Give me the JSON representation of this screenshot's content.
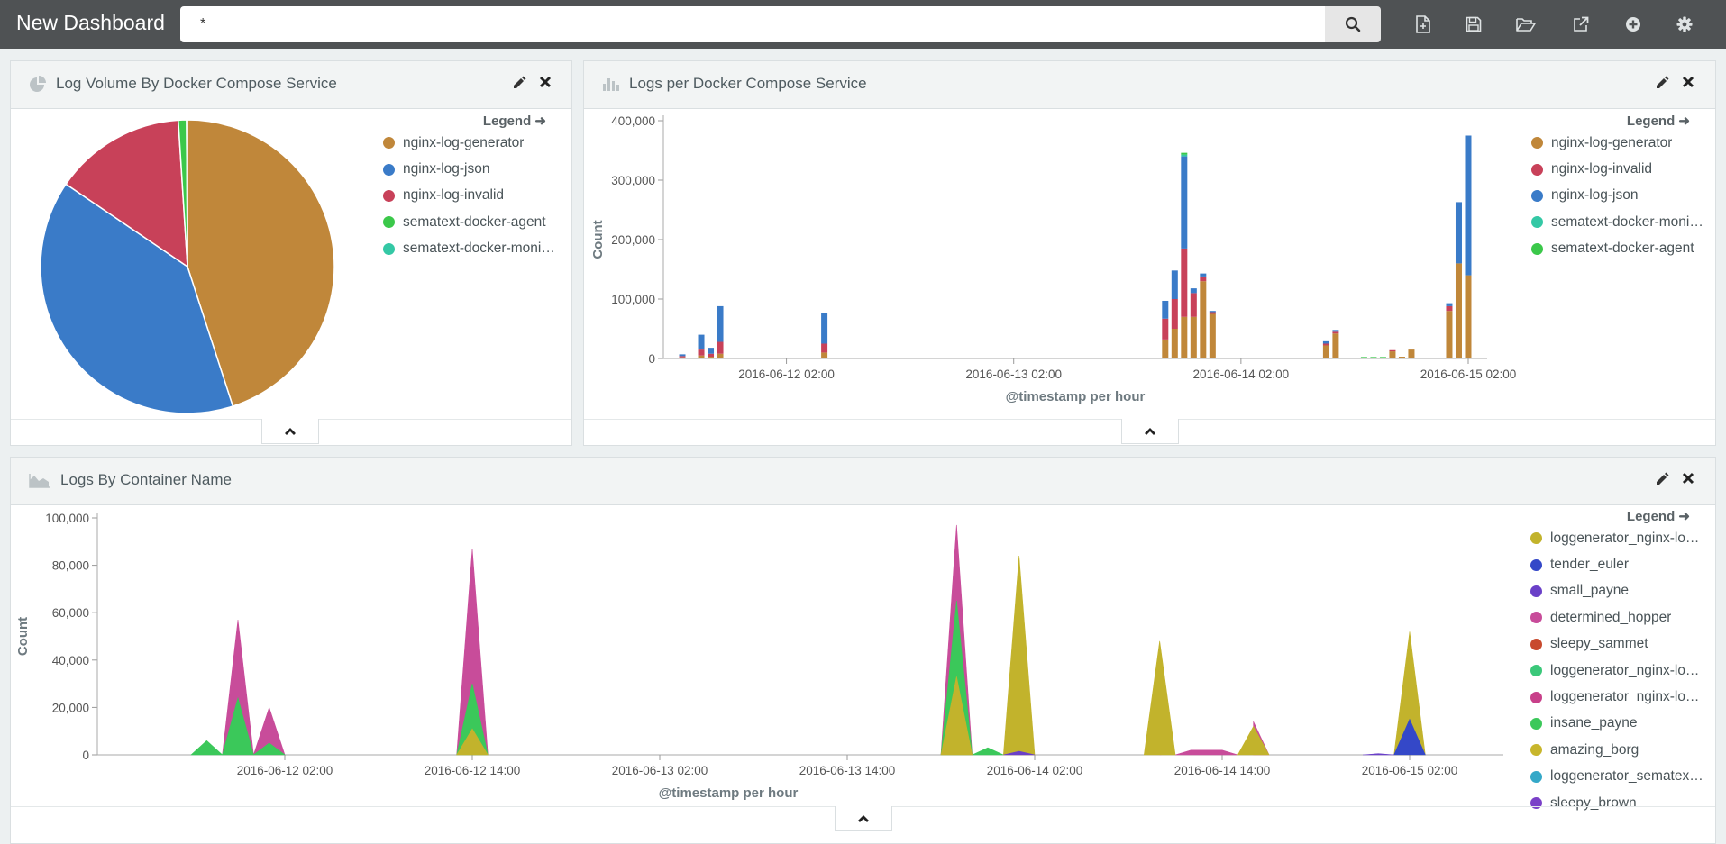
{
  "app": {
    "title": "New Dashboard"
  },
  "search": {
    "value": "*"
  },
  "toolbar": {
    "icons": [
      "new-dashboard-icon",
      "save-icon",
      "open-icon",
      "share-icon",
      "add-panel-icon",
      "settings-icon"
    ]
  },
  "colors": {
    "topbar": "#4f5254",
    "gold": "#c0873a",
    "blue": "#3a7bc8",
    "red": "#c84159",
    "green": "#3bc84a",
    "teal": "#34c8a5"
  },
  "panels": {
    "pie": {
      "title": "Log Volume By Docker Compose Service",
      "legend_title": "Legend",
      "legend": [
        {
          "label": "nginx-log-generator",
          "color": "#c0873a"
        },
        {
          "label": "nginx-log-json",
          "color": "#3a7bc8"
        },
        {
          "label": "nginx-log-invalid",
          "color": "#c84159"
        },
        {
          "label": "sematext-docker-agent",
          "color": "#3bc84a"
        },
        {
          "label": "sematext-docker-moni…",
          "color": "#34c8a5"
        }
      ]
    },
    "bar": {
      "title": "Logs per Docker Compose Service",
      "legend_title": "Legend",
      "legend": [
        {
          "label": "nginx-log-generator",
          "color": "#c0873a"
        },
        {
          "label": "nginx-log-invalid",
          "color": "#c84159"
        },
        {
          "label": "nginx-log-json",
          "color": "#3a7bc8"
        },
        {
          "label": "sematext-docker-moni…",
          "color": "#34c8a5"
        },
        {
          "label": "sematext-docker-agent",
          "color": "#3bc84a"
        }
      ]
    },
    "area": {
      "title": "Logs By Container Name",
      "legend_title": "Legend",
      "legend": [
        {
          "label": "loggenerator_nginx-lo…",
          "color": "#c2b32c"
        },
        {
          "label": "tender_euler",
          "color": "#3448c8"
        },
        {
          "label": "small_payne",
          "color": "#6a40c8"
        },
        {
          "label": "determined_hopper",
          "color": "#c84c9a"
        },
        {
          "label": "sleepy_sammet",
          "color": "#c84a2e"
        },
        {
          "label": "loggenerator_nginx-lo…",
          "color": "#3bc87a"
        },
        {
          "label": "loggenerator_nginx-lo…",
          "color": "#c8408a"
        },
        {
          "label": "insane_payne",
          "color": "#3bc85a"
        },
        {
          "label": "amazing_borg",
          "color": "#c8b62c"
        },
        {
          "label": "loggenerator_sematex…",
          "color": "#34a8c8"
        },
        {
          "label": "sleepy_brown",
          "color": "#7a40c8"
        }
      ]
    }
  },
  "chart_data": [
    {
      "type": "pie",
      "slices": [
        {
          "label": "nginx-log-generator",
          "value": 45.0,
          "color": "#c0873a"
        },
        {
          "label": "nginx-log-json",
          "value": 39.5,
          "color": "#3a7bc8"
        },
        {
          "label": "nginx-log-invalid",
          "value": 14.5,
          "color": "#c84159"
        },
        {
          "label": "sematext-docker-agent",
          "value": 0.9,
          "color": "#3bc84a"
        },
        {
          "label": "sematext-docker-moni…",
          "value": 0.1,
          "color": "#34c8a5"
        }
      ]
    },
    {
      "type": "bar",
      "stacked": true,
      "xlabel": "@timestamp per hour",
      "ylabel": "Count",
      "ylim": [
        0,
        400000
      ],
      "yticks": [
        0,
        100000,
        200000,
        300000,
        400000
      ],
      "ytick_labels": [
        "0",
        "100,000",
        "200,000",
        "300,000",
        "400,000"
      ],
      "xticks": [
        "2016-06-12 02:00",
        "2016-06-13 02:00",
        "2016-06-14 02:00",
        "2016-06-15 02:00"
      ],
      "xtick_hours": [
        13,
        37,
        61,
        85
      ],
      "x": [
        2,
        4,
        5,
        6,
        17,
        53,
        54,
        55,
        56,
        57,
        58,
        62,
        63,
        70,
        71,
        74,
        75,
        76,
        77,
        78,
        79,
        83,
        84,
        85
      ],
      "series": [
        {
          "name": "nginx-log-generator",
          "color": "#c0873a",
          "values": [
            2000,
            5000,
            3000,
            8000,
            10000,
            32000,
            50000,
            70000,
            70000,
            130000,
            75000,
            0,
            0,
            22000,
            42000,
            0,
            0,
            0,
            12000,
            3000,
            15000,
            80000,
            160000,
            140000
          ]
        },
        {
          "name": "nginx-log-invalid",
          "color": "#c84159",
          "values": [
            2000,
            10000,
            5000,
            20000,
            15000,
            35000,
            50000,
            115000,
            40000,
            8000,
            3000,
            0,
            0,
            3000,
            3000,
            0,
            0,
            0,
            2000,
            0,
            0,
            8000,
            0,
            0
          ]
        },
        {
          "name": "nginx-log-json",
          "color": "#3a7bc8",
          "values": [
            3000,
            25000,
            10000,
            60000,
            52000,
            30000,
            48000,
            155000,
            8000,
            5000,
            2000,
            0,
            0,
            4000,
            3000,
            0,
            0,
            0,
            0,
            0,
            0,
            5000,
            103000,
            235000
          ]
        },
        {
          "name": "sematext-docker-moni…",
          "color": "#34c8a5",
          "values": [
            0,
            0,
            0,
            0,
            0,
            0,
            0,
            3000,
            0,
            0,
            0,
            0,
            0,
            0,
            0,
            0,
            0,
            0,
            0,
            0,
            0,
            0,
            0,
            0
          ]
        },
        {
          "name": "sematext-docker-agent",
          "color": "#3bc84a",
          "values": [
            0,
            0,
            0,
            0,
            0,
            0,
            0,
            3000,
            0,
            0,
            0,
            0,
            0,
            0,
            0,
            2500,
            2500,
            2500,
            0,
            0,
            0,
            0,
            0,
            0
          ]
        }
      ]
    },
    {
      "type": "area",
      "xlabel": "@timestamp per hour",
      "ylabel": "Count",
      "ylim": [
        0,
        100000
      ],
      "yticks": [
        0,
        20000,
        40000,
        60000,
        80000,
        100000
      ],
      "ytick_labels": [
        "0",
        "20,000",
        "40,000",
        "60,000",
        "80,000",
        "100,000"
      ],
      "xticks": [
        "2016-06-12 02:00",
        "2016-06-12 14:00",
        "2016-06-13 02:00",
        "2016-06-13 14:00",
        "2016-06-14 02:00",
        "2016-06-14 14:00",
        "2016-06-15 02:00"
      ],
      "xtick_hours": [
        26,
        38,
        50,
        62,
        74,
        86,
        98
      ],
      "series": [
        {
          "name": "amazing_borg",
          "color": "#c2b32c",
          "points": [
            [
              37,
              0
            ],
            [
              38,
              11000
            ],
            [
              39,
              0
            ],
            [
              68,
              0
            ],
            [
              69,
              33000
            ],
            [
              70,
              0
            ],
            [
              72,
              0
            ],
            [
              73,
              84000
            ],
            [
              74,
              0
            ],
            [
              81,
              0
            ],
            [
              82,
              48000
            ],
            [
              83,
              0
            ],
            [
              87,
              0
            ],
            [
              88,
              12000
            ],
            [
              89,
              0
            ],
            [
              97,
              0
            ],
            [
              98,
              52000
            ],
            [
              99,
              0
            ]
          ]
        },
        {
          "name": "insane_payne",
          "color": "#3bc85a",
          "points": [
            [
              20,
              0
            ],
            [
              21,
              6000
            ],
            [
              22,
              0
            ],
            [
              22,
              0
            ],
            [
              23,
              24000
            ],
            [
              24,
              0
            ],
            [
              24,
              0
            ],
            [
              25,
              5000
            ],
            [
              26,
              0
            ],
            [
              37,
              0
            ],
            [
              38,
              30000
            ],
            [
              39,
              0
            ],
            [
              68,
              0
            ],
            [
              69,
              65000
            ],
            [
              70,
              0
            ],
            [
              70,
              0
            ],
            [
              71,
              3000
            ],
            [
              72,
              0
            ]
          ]
        },
        {
          "name": "determined_hopper",
          "color": "#c84c9a",
          "points": [
            [
              22,
              0
            ],
            [
              23,
              57000
            ],
            [
              24,
              0
            ],
            [
              24,
              0
            ],
            [
              25,
              20000
            ],
            [
              26,
              0
            ],
            [
              37,
              0
            ],
            [
              38,
              87000
            ],
            [
              39,
              0
            ],
            [
              68,
              0
            ],
            [
              69,
              97000
            ],
            [
              70,
              0
            ],
            [
              82,
              0
            ],
            [
              82.1,
              0
            ],
            [
              83,
              0
            ],
            [
              84,
              2000
            ],
            [
              85,
              2000
            ],
            [
              86,
              2000
            ],
            [
              87,
              0
            ],
            [
              88,
              14000
            ],
            [
              89,
              0
            ]
          ]
        },
        {
          "name": "tender_euler",
          "color": "#3448c8",
          "points": [
            [
              97,
              0
            ],
            [
              98,
              15000
            ],
            [
              99,
              0
            ]
          ]
        },
        {
          "name": "small_payne",
          "color": "#6a40c8",
          "points": [
            [
              72,
              0
            ],
            [
              73,
              1500
            ],
            [
              74,
              0
            ],
            [
              95,
              0
            ],
            [
              96,
              500
            ],
            [
              97,
              0
            ]
          ]
        }
      ]
    }
  ]
}
